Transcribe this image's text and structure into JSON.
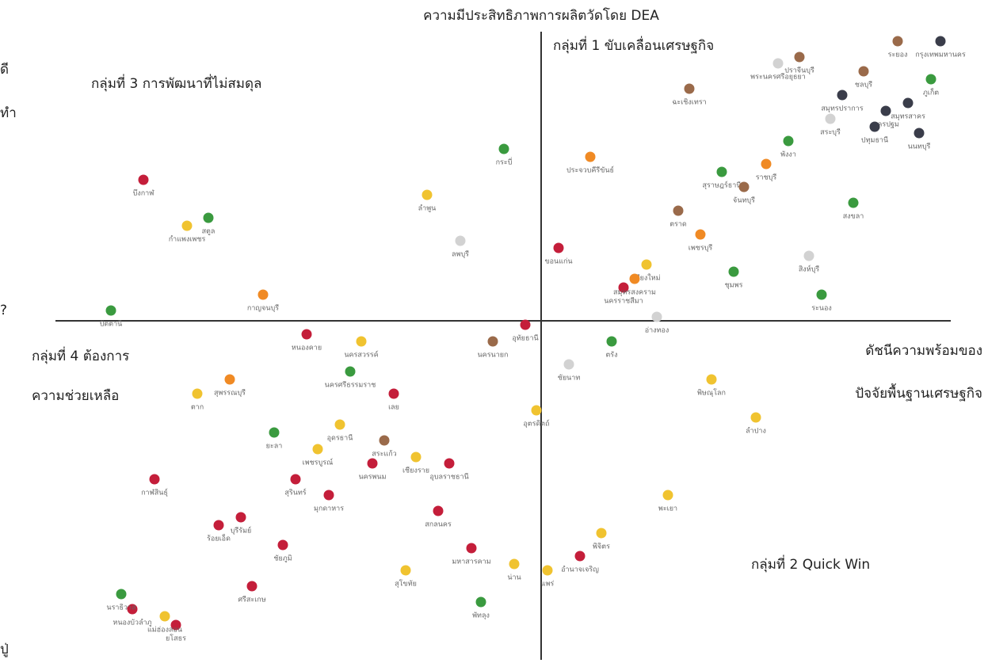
{
  "chart_data": {
    "type": "scatter",
    "title": "ความมีประสิทธิภาพการผลิตวัดโดย DEA",
    "quadrant_1": "กลุ่มที่ 1 ขับเคลื่อนเศรษฐกิจ",
    "quadrant_2": "กลุ่มที่ 2 Quick Win",
    "quadrant_3": "กลุ่มที่ 3 การพัฒนาที่ไม่สมดุล",
    "quadrant_4": [
      "กลุ่มที่ 4 ต้องการ",
      "ความช่วยเหลือ"
    ],
    "x_label": [
      "ดัชนีความพร้อมของ",
      "ปัจจัยพื้นฐานเศรษฐกิจ"
    ],
    "edge_texts": [
      "ดี",
      "ทำ",
      "?",
      "ปู่"
    ],
    "xlim": [
      -61.3,
      51.7
    ],
    "ylim": [
      -42.8,
      37
    ],
    "series": [
      {
        "color": "#c41e3a",
        "labels": [
          "บึงกาฬ",
          "ขอนแก่น",
          "นครราชสีมา",
          "หนองคาย",
          "อุทัยธานี",
          "เลย",
          "นครพนม",
          "อุบลราชธานี",
          "สุรินทร์",
          "มุกดาหาร",
          "กาฬสินธุ์",
          "บุรีรัมย์",
          "ร้อยเอ็ด",
          "ชัยภูมิ",
          "สกลนคร",
          "มหาสารคาม",
          "ศรีสะเกษ",
          "หนองบัวลำภู",
          "ยโสธร",
          "อำนาจเจริญ"
        ],
        "x": [
          -50.2,
          2.2,
          10.4,
          -29.6,
          -2,
          -18.6,
          -21.3,
          -11.6,
          -31,
          -26.8,
          -48.8,
          -37.9,
          -40.7,
          -32.6,
          -13,
          -8.8,
          -36.5,
          -51.6,
          -46.1,
          4.9
        ],
        "y": [
          17.8,
          9.2,
          4.2,
          -1.7,
          -0.5,
          -9.2,
          -18,
          -18,
          -20,
          -22,
          -20,
          -24.8,
          -25.8,
          -28.3,
          -24,
          -28.7,
          -33.5,
          -36.4,
          -38.4,
          -29.7
        ]
      },
      {
        "color": "#3a9a3f",
        "labels": [
          "ภูเก็ต",
          "พังงา",
          "สุราษฎร์ธานี",
          "สงขลา",
          "ชุมพร",
          "ระนอง",
          "กระบี่",
          "สตูล",
          "ปัตตานี",
          "นครศรีธรรมราช",
          "ยะลา",
          "พัทลุง",
          "นราธิวาส",
          "ตรัง"
        ],
        "x": [
          49.2,
          31.2,
          22.8,
          39.4,
          24.3,
          35.4,
          -4.7,
          -42,
          -54.3,
          -24.1,
          -33.7,
          -7.6,
          -53,
          8.9
        ],
        "y": [
          30.5,
          22.7,
          18.8,
          14.9,
          6.2,
          3.3,
          21.7,
          13,
          1.3,
          -6.4,
          -14.1,
          -35.5,
          -34.5,
          -2.6
        ]
      },
      {
        "color": "#f0c330",
        "labels": [
          "เชียงใหม่",
          "ลำพูน",
          "กำแพงเพชร",
          "นครสวรรค์",
          "ตาก",
          "อุตรดิตถ์",
          "อุดรธานี",
          "เพชรบูรณ์",
          "เชียงราย",
          "สุโขทัย",
          "น่าน",
          "แพร่",
          "แม่ฮ่องสอน",
          "พิษณุโลก",
          "ลำปาง",
          "พะเยา",
          "พิจิตร"
        ],
        "x": [
          13.3,
          -14.4,
          -44.7,
          -22.7,
          -43.4,
          -0.6,
          -25.4,
          -28.2,
          -15.8,
          -17.1,
          -3.4,
          0.8,
          -47.5,
          21.5,
          27.1,
          16,
          7.6
        ],
        "y": [
          7.1,
          15.9,
          12,
          -2.6,
          -9.2,
          -11.3,
          -13.1,
          -16.2,
          -17.2,
          -31.5,
          -30.7,
          -31.5,
          -37.3,
          -7.4,
          -12.2,
          -22,
          -26.8
        ]
      },
      {
        "color": "#f08a24",
        "labels": [
          "ราชบุรี",
          "ประจวบคีรีขันธ์",
          "เพชรบุรี",
          "สมุทรสงคราม",
          "กาญจนบุรี",
          "สุพรรณบุรี"
        ],
        "x": [
          28.4,
          6.2,
          20.1,
          11.8,
          -35.1,
          -39.3
        ],
        "y": [
          19.8,
          20.7,
          10.9,
          5.3,
          3.3,
          -7.4
        ]
      },
      {
        "color": "#9a6a4a",
        "labels": [
          "ระยอง",
          "ปราจีนบุรี",
          "ชลบุรี",
          "ฉะเชิงเทรา",
          "จันทบุรี",
          "ตราด",
          "นครนายก",
          "สระแก้ว"
        ],
        "x": [
          45,
          32.6,
          40.7,
          18.7,
          25.6,
          17.3,
          -6.1,
          -19.8
        ],
        "y": [
          35.3,
          33.3,
          31.5,
          29.3,
          16.9,
          13.9,
          -2.6,
          -15.1
        ]
      },
      {
        "color": "#d2d2d2",
        "labels": [
          "พระนครศรีอยุธยา",
          "สระบุรี",
          "สิงห์บุรี",
          "อ่างทอง",
          "ลพบุรี",
          "ชัยนาท"
        ],
        "x": [
          29.9,
          36.5,
          33.8,
          14.6,
          -10.2,
          3.5
        ],
        "y": [
          32.5,
          25.5,
          8.2,
          0.5,
          10.1,
          -5.5
        ]
      },
      {
        "color": "#3a3d4a",
        "labels": [
          "กรุงเทพมหานคร",
          "สมุทรปราการ",
          "นครปฐม",
          "สมุทรสาคร",
          "ปทุมธานี",
          "นนทบุรี"
        ],
        "x": [
          50.4,
          38,
          43.5,
          46.3,
          42.1,
          47.7
        ],
        "y": [
          35.3,
          28.5,
          26.5,
          27.5,
          24.5,
          23.7
        ]
      }
    ]
  }
}
